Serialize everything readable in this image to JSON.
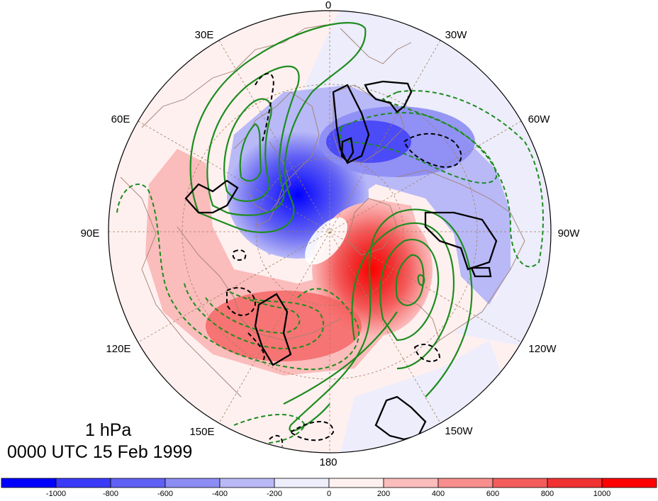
{
  "map": {
    "projection": "north-polar-stereographic",
    "level": "1 hPa",
    "valid_time": "0000 UTC 15 Feb 1999",
    "longitude_labels": [
      "0",
      "30W",
      "60W",
      "90W",
      "120W",
      "150W",
      "180",
      "150E",
      "120E",
      "90E",
      "60E",
      "30E"
    ],
    "fill_field": {
      "description_shown": "shaded anomaly field with blue negative and red positive values",
      "min_center_value": -1000,
      "max_center_value": 1000
    },
    "contours": {
      "green_solid": "positive contours",
      "green_dashed": "negative contours",
      "black_solid": "positive contours",
      "black_dashed": "negative contours"
    },
    "colors": {
      "coastline": "#a08070",
      "gridline": "#a0805a",
      "green_contour": "#1e8c1e",
      "black_contour": "#000000"
    }
  },
  "colorbar": {
    "labels": [
      "-1000",
      "-800",
      "-600",
      "-400",
      "-200",
      "0",
      "200",
      "400",
      "600",
      "800",
      "1000"
    ],
    "colors": [
      "#0000ff",
      "#3a3af8",
      "#6060f4",
      "#8c8cf4",
      "#b9b9f8",
      "#ededfc",
      "#fff0f0",
      "#fbbcbc",
      "#f88e8e",
      "#f45c5c",
      "#f03232",
      "#ff0000"
    ]
  }
}
